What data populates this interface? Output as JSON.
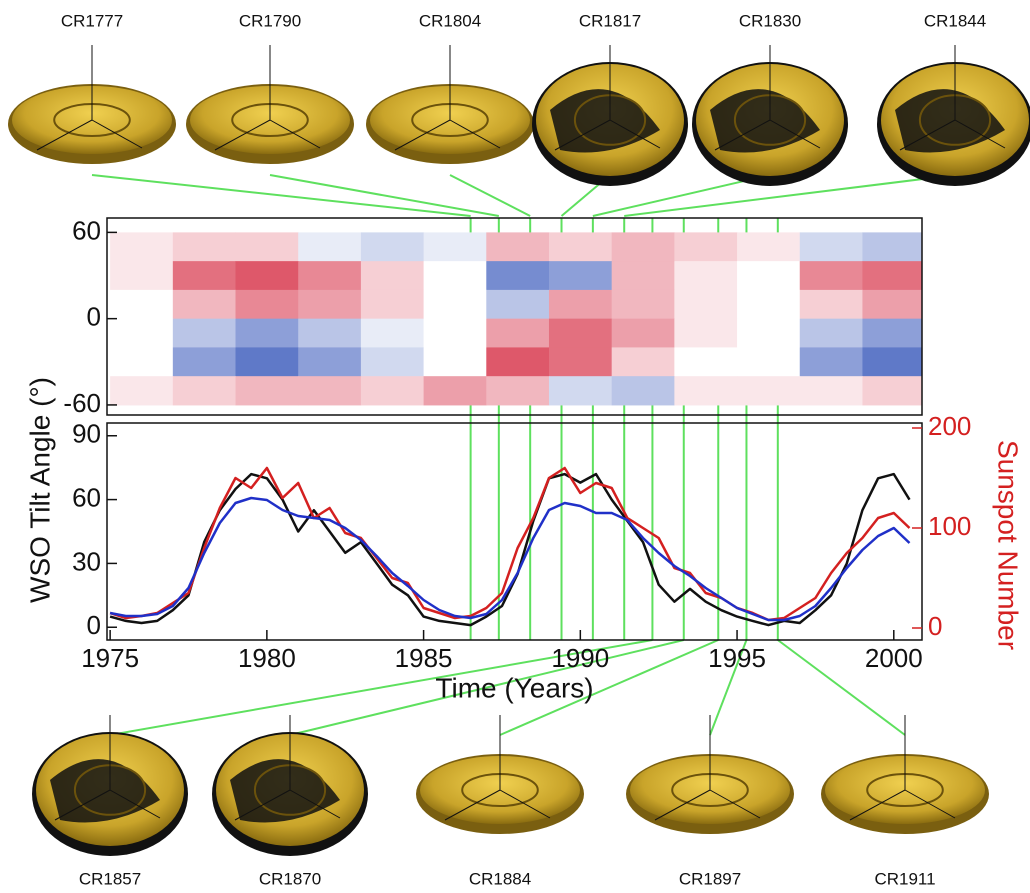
{
  "chart_data": [
    {
      "type": "heatmap",
      "x": [
        1976,
        1978,
        1980,
        1982,
        1984,
        1986,
        1988,
        1990,
        1992,
        1994,
        1996,
        1998,
        2000
      ],
      "y": [
        50,
        30,
        10,
        -10,
        -30,
        -50
      ],
      "z": [
        [
          0.1,
          0.2,
          0.2,
          -0.1,
          -0.2,
          -0.1,
          0.3,
          0.2,
          0.3,
          0.2,
          0.1,
          -0.2,
          -0.3
        ],
        [
          0.1,
          0.6,
          0.7,
          0.5,
          0.2,
          0,
          -0.6,
          -0.5,
          0.3,
          0.1,
          0,
          0.5,
          0.6
        ],
        [
          0,
          0.3,
          0.5,
          0.4,
          0.2,
          0,
          -0.3,
          0.4,
          0.3,
          0.1,
          0,
          0.2,
          0.4
        ],
        [
          0,
          -0.3,
          -0.5,
          -0.3,
          -0.1,
          0,
          0.4,
          0.6,
          0.4,
          0.1,
          0,
          -0.3,
          -0.5
        ],
        [
          0,
          -0.5,
          -0.7,
          -0.5,
          -0.2,
          0,
          0.7,
          0.6,
          0.2,
          0,
          0,
          -0.5,
          -0.7
        ],
        [
          0.1,
          0.2,
          0.3,
          0.3,
          0.2,
          0.4,
          0.3,
          -0.2,
          -0.3,
          0.1,
          0.1,
          0.1,
          0.2
        ]
      ],
      "zlim": [
        -1,
        1
      ],
      "colors": [
        "#1a3fb0",
        "#ffffff",
        "#d0102a"
      ],
      "xlim": [
        1974.9,
        2000.9
      ],
      "ylim": [
        -67,
        70
      ],
      "yticks": [
        -60,
        0,
        60
      ]
    },
    {
      "type": "line",
      "xlabel": "Time (Years)",
      "ylabel": "WSO Tilt Angle (°)",
      "y2label": "Sunspot Number",
      "x": [
        1975,
        1975.5,
        1976,
        1976.5,
        1977,
        1977.5,
        1978,
        1978.5,
        1979,
        1979.5,
        1980,
        1980.5,
        1981,
        1981.5,
        1982,
        1982.5,
        1983,
        1983.5,
        1984,
        1984.5,
        1985,
        1985.5,
        1986,
        1986.5,
        1987,
        1987.5,
        1988,
        1988.5,
        1989,
        1989.5,
        1990,
        1990.5,
        1991,
        1991.5,
        1992,
        1992.5,
        1993,
        1993.5,
        1994,
        1994.5,
        1995,
        1995.5,
        1996,
        1996.5,
        1997,
        1997.5,
        1998,
        1998.5,
        1999,
        1999.5,
        2000,
        2000.5
      ],
      "series": [
        {
          "color": "#111111",
          "values": [
            5,
            3,
            2,
            3,
            8,
            15,
            40,
            55,
            65,
            72,
            70,
            60,
            45,
            55,
            45,
            35,
            40,
            30,
            20,
            15,
            5,
            3,
            2,
            1,
            5,
            10,
            25,
            50,
            70,
            72,
            68,
            72,
            60,
            50,
            40,
            20,
            12,
            18,
            12,
            8,
            5,
            3,
            1,
            3,
            2,
            8,
            15,
            30,
            55,
            70,
            72,
            60
          ]
        },
        {
          "color": "#d42020",
          "axis": "y2",
          "values": [
            15,
            10,
            12,
            15,
            25,
            35,
            80,
            120,
            150,
            140,
            160,
            130,
            145,
            110,
            120,
            95,
            90,
            70,
            50,
            45,
            20,
            15,
            10,
            12,
            20,
            35,
            80,
            110,
            150,
            160,
            135,
            145,
            140,
            110,
            100,
            90,
            60,
            55,
            35,
            30,
            20,
            15,
            8,
            10,
            20,
            30,
            55,
            75,
            90,
            110,
            115,
            100
          ]
        },
        {
          "color": "#2030c8",
          "axis": "y2",
          "values": [
            15,
            12,
            12,
            14,
            22,
            40,
            75,
            105,
            125,
            130,
            128,
            118,
            112,
            110,
            108,
            100,
            88,
            72,
            55,
            42,
            28,
            18,
            12,
            10,
            14,
            28,
            55,
            90,
            118,
            125,
            122,
            115,
            115,
            108,
            90,
            75,
            62,
            52,
            40,
            30,
            20,
            14,
            8,
            8,
            12,
            22,
            40,
            60,
            78,
            92,
            100,
            85
          ]
        }
      ],
      "xlim": [
        1974.9,
        2000.9
      ],
      "xticks": [
        1975,
        1980,
        1985,
        1990,
        1995,
        2000
      ],
      "ylim": [
        -6,
        96
      ],
      "yticks": [
        0,
        30,
        60,
        90
      ],
      "y2lim": [
        -12,
        205
      ],
      "y2ticks": [
        0,
        100,
        200
      ],
      "y2color": "#d42020",
      "markers": [
        {
          "label": "CR1777",
          "x": 1986.5
        },
        {
          "label": "CR1790",
          "x": 1987.4
        },
        {
          "label": "CR1804",
          "x": 1988.4
        },
        {
          "label": "CR1817",
          "x": 1989.4
        },
        {
          "label": "CR1830",
          "x": 1990.4
        },
        {
          "label": "CR1844",
          "x": 1991.4
        },
        {
          "label": "CR1857",
          "x": 1992.3
        },
        {
          "label": "CR1870",
          "x": 1993.3
        },
        {
          "label": "CR1884",
          "x": 1994.4
        },
        {
          "label": "CR1897",
          "x": 1995.3
        },
        {
          "label": "CR1911",
          "x": 1996.3
        }
      ],
      "marker_color": "#5ee05e"
    }
  ]
}
